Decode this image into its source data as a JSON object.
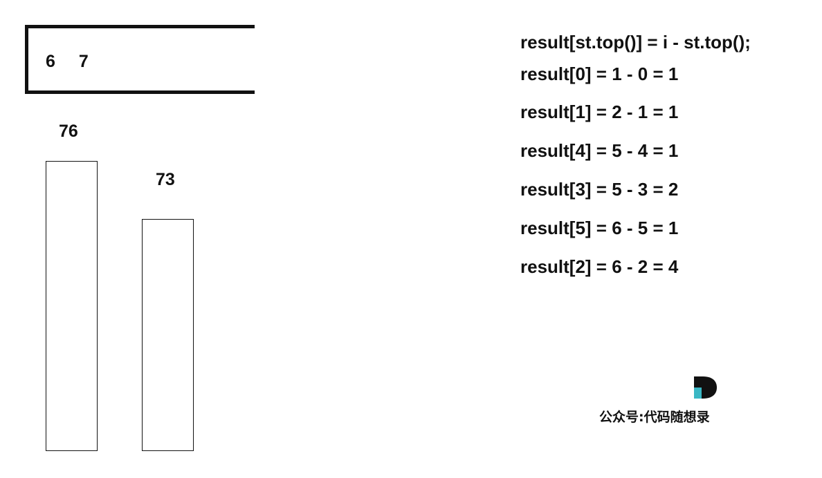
{
  "stack": {
    "items": [
      "6",
      "7"
    ]
  },
  "bars": [
    {
      "label": "76",
      "value": 76
    },
    {
      "label": "73",
      "value": 73
    }
  ],
  "formulas": [
    "result[st.top()] = i - st.top();",
    "result[0] = 1 - 0 = 1",
    "result[1] = 2 - 1 = 1",
    "result[4] = 5 - 4 = 1",
    "result[3] = 5 - 3 = 2",
    "result[5] = 6 - 5 = 1",
    "result[2] = 6 - 2 = 4"
  ],
  "watermark": {
    "text": "公众号:代码随想录",
    "accent": "#3ab7c4"
  }
}
